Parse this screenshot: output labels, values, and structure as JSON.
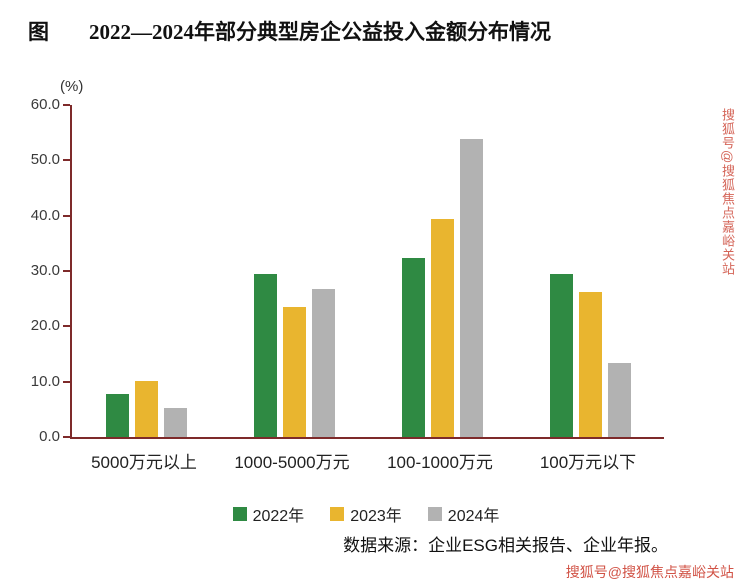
{
  "page": {
    "figure_label": "图",
    "title": "2022—2024年部分典型房企公益投入金额分布情况",
    "source": "数据来源：企业ESG相关报告、企业年报。",
    "watermark": "搜狐号@搜狐焦点嘉峪关站"
  },
  "chart_data": {
    "type": "bar",
    "title": "2022—2024年部分典型房企公益投入金额分布情况",
    "unit_label": "(%)",
    "categories": [
      "5000万元以上",
      "1000-5000万元",
      "100-1000万元",
      "100万元以下"
    ],
    "series": [
      {
        "name": "2022年",
        "color": "#2f8a43",
        "values": [
          7.8,
          29.5,
          32.3,
          29.5
        ]
      },
      {
        "name": "2023年",
        "color": "#e9b52f",
        "values": [
          10.2,
          23.5,
          39.4,
          26.2
        ]
      },
      {
        "name": "2024年",
        "color": "#b2b2b2",
        "values": [
          5.3,
          26.8,
          53.8,
          13.3
        ]
      }
    ],
    "ylim": [
      0,
      60
    ],
    "ytick_step": 10,
    "ytick_labels": [
      "0.0",
      "10.0",
      "20.0",
      "30.0",
      "40.0",
      "50.0",
      "60.0"
    ],
    "grid": false,
    "legend_position": "bottom",
    "axis_color": "#7e2a2a",
    "ylabel": "(%)",
    "xlabel": ""
  }
}
